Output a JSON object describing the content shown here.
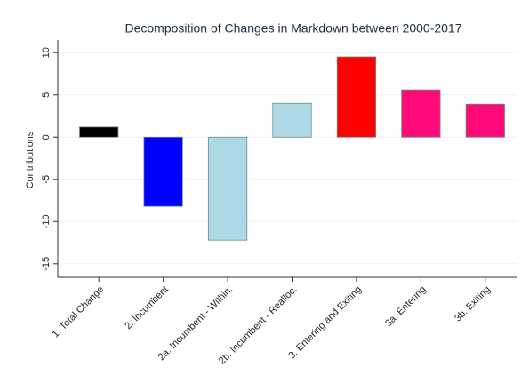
{
  "chart_data": {
    "type": "bar",
    "title": "Decomposition of Changes in Markdown between 2000-2017",
    "y_label": "Contributions",
    "categories": [
      "1. Total Change",
      "2. Incumbent",
      "2a. Incumbent - Within.",
      "2b. Incumbent - Realloc.",
      "3. Entering and Exiting",
      "3a. Entering",
      "3b. Exiting"
    ],
    "values": [
      1.2,
      -8.2,
      -12.2,
      4.0,
      9.5,
      5.6,
      3.9
    ],
    "colors": [
      "#000000",
      "#0000ff",
      "#add8e6",
      "#add8e6",
      "#ff0000",
      "#ff0a78",
      "#ff0a78"
    ],
    "ylim": [
      -16.6,
      11.5
    ],
    "yticks": [
      -15,
      -10,
      -5,
      0,
      5,
      10
    ],
    "grid": true
  }
}
